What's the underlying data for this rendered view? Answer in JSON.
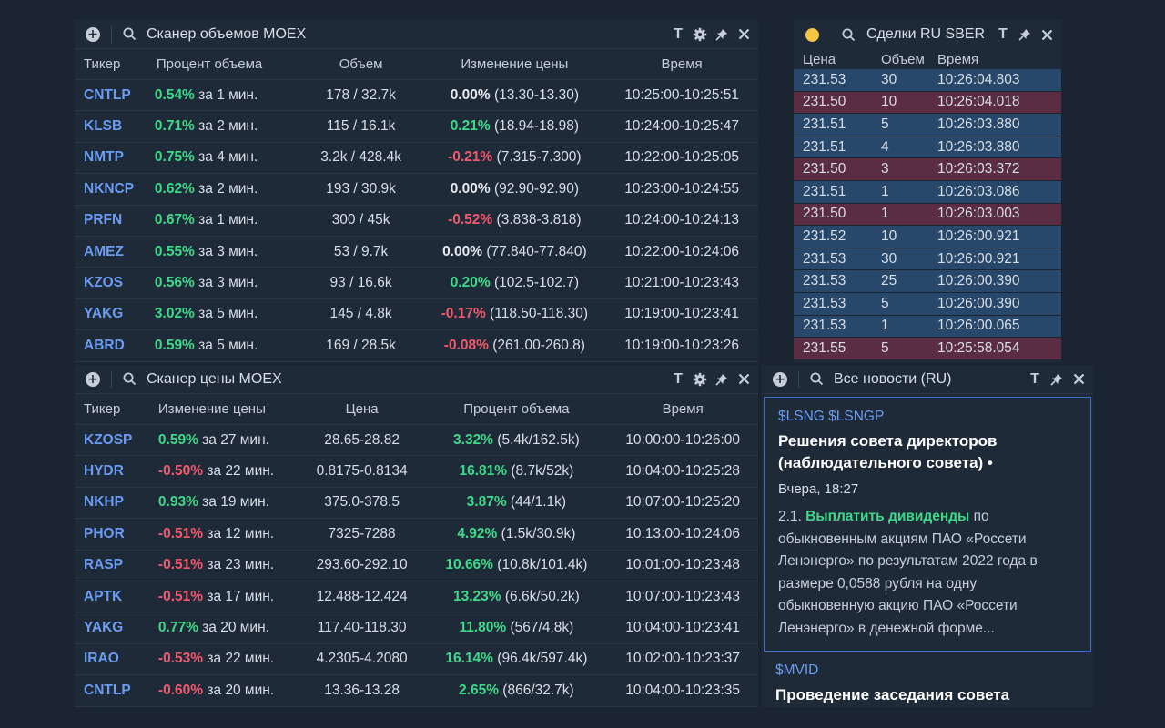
{
  "volume_scanner": {
    "title": "Сканер объемов MOEX",
    "columns": [
      "Тикер",
      "Процент объема",
      "Объем",
      "Изменение цены",
      "Время"
    ],
    "rows": [
      {
        "ticker": "CNTLP",
        "pct": "0.54%",
        "period": "за 1 мин.",
        "volume": "178 / 32.7k",
        "change": "0.00%",
        "range": "(13.30-13.30)",
        "dir": "neu",
        "time": "10:25:00-10:25:51"
      },
      {
        "ticker": "KLSB",
        "pct": "0.71%",
        "period": "за 2 мин.",
        "volume": "115 / 16.1k",
        "change": "0.21%",
        "range": "(18.94-18.98)",
        "dir": "pos",
        "time": "10:24:00-10:25:47"
      },
      {
        "ticker": "NMTP",
        "pct": "0.75%",
        "period": "за 4 мин.",
        "volume": "3.2k / 428.4k",
        "change": "-0.21%",
        "range": "(7.315-7.300)",
        "dir": "neg",
        "time": "10:22:00-10:25:05"
      },
      {
        "ticker": "NKNCP",
        "pct": "0.62%",
        "period": "за 2 мин.",
        "volume": "193 / 30.9k",
        "change": "0.00%",
        "range": "(92.90-92.90)",
        "dir": "neu",
        "time": "10:23:00-10:24:55"
      },
      {
        "ticker": "PRFN",
        "pct": "0.67%",
        "period": "за 1 мин.",
        "volume": "300 / 45k",
        "change": "-0.52%",
        "range": "(3.838-3.818)",
        "dir": "neg",
        "time": "10:24:00-10:24:13"
      },
      {
        "ticker": "AMEZ",
        "pct": "0.55%",
        "period": "за 3 мин.",
        "volume": "53 / 9.7k",
        "change": "0.00%",
        "range": "(77.840-77.840)",
        "dir": "neu",
        "time": "10:22:00-10:24:06"
      },
      {
        "ticker": "KZOS",
        "pct": "0.56%",
        "period": "за 3 мин.",
        "volume": "93 / 16.6k",
        "change": "0.20%",
        "range": "(102.5-102.7)",
        "dir": "pos",
        "time": "10:21:00-10:23:43"
      },
      {
        "ticker": "YAKG",
        "pct": "3.02%",
        "period": "за 5 мин.",
        "volume": "145 / 4.8k",
        "change": "-0.17%",
        "range": "(118.50-118.30)",
        "dir": "neg",
        "time": "10:19:00-10:23:41"
      },
      {
        "ticker": "ABRD",
        "pct": "0.59%",
        "period": "за 5 мин.",
        "volume": "169 / 28.5k",
        "change": "-0.08%",
        "range": "(261.00-260.8)",
        "dir": "neg",
        "time": "10:19:00-10:23:26"
      }
    ]
  },
  "price_scanner": {
    "title": "Сканер цены MOEX",
    "columns": [
      "Тикер",
      "Изменение цены",
      "Цена",
      "Процент объема",
      "Время"
    ],
    "rows": [
      {
        "ticker": "KZOSP",
        "change": "0.59%",
        "period": "за 27 мин.",
        "dir": "pos",
        "price": "28.65-28.82",
        "pct": "3.32%",
        "vol": "(5.4k/162.5k)",
        "time": "10:00:00-10:26:00"
      },
      {
        "ticker": "HYDR",
        "change": "-0.50%",
        "period": "за 22 мин.",
        "dir": "neg",
        "price": "0.8175-0.8134",
        "pct": "16.81%",
        "vol": "(8.7k/52k)",
        "time": "10:04:00-10:25:28"
      },
      {
        "ticker": "NKHP",
        "change": "0.93%",
        "period": "за 19 мин.",
        "dir": "pos",
        "price": "375.0-378.5",
        "pct": "3.87%",
        "vol": "(44/1.1k)",
        "time": "10:07:00-10:25:20"
      },
      {
        "ticker": "PHOR",
        "change": "-0.51%",
        "period": "за 12 мин.",
        "dir": "neg",
        "price": "7325-7288",
        "pct": "4.92%",
        "vol": "(1.5k/30.9k)",
        "time": "10:13:00-10:24:06"
      },
      {
        "ticker": "RASP",
        "change": "-0.51%",
        "period": "за 23 мин.",
        "dir": "neg",
        "price": "293.60-292.10",
        "pct": "10.66%",
        "vol": "(10.8k/101.4k)",
        "time": "10:01:00-10:23:48"
      },
      {
        "ticker": "APTK",
        "change": "-0.51%",
        "period": "за 17 мин.",
        "dir": "neg",
        "price": "12.488-12.424",
        "pct": "13.23%",
        "vol": "(6.6k/50.2k)",
        "time": "10:07:00-10:23:43"
      },
      {
        "ticker": "YAKG",
        "change": "0.77%",
        "period": "за 20 мин.",
        "dir": "pos",
        "price": "117.40-118.30",
        "pct": "11.80%",
        "vol": "(567/4.8k)",
        "time": "10:04:00-10:23:41"
      },
      {
        "ticker": "IRAO",
        "change": "-0.53%",
        "period": "за 22 мин.",
        "dir": "neg",
        "price": "4.2305-4.2080",
        "pct": "16.14%",
        "vol": "(96.4k/597.4k)",
        "time": "10:02:00-10:23:37"
      },
      {
        "ticker": "CNTLP",
        "change": "-0.60%",
        "period": "за 20 мин.",
        "dir": "neg",
        "price": "13.36-13.28",
        "pct": "2.65%",
        "vol": "(866/32.7k)",
        "time": "10:04:00-10:23:35"
      }
    ]
  },
  "trades": {
    "title": "Сделки RU SBER",
    "columns": [
      "Цена",
      "Объем",
      "Время"
    ],
    "rows": [
      {
        "price": "231.53",
        "volume": "30",
        "time": "10:26:04.803",
        "side": "buy"
      },
      {
        "price": "231.50",
        "volume": "10",
        "time": "10:26:04.018",
        "side": "sell"
      },
      {
        "price": "231.51",
        "volume": "5",
        "time": "10:26:03.880",
        "side": "buy"
      },
      {
        "price": "231.51",
        "volume": "4",
        "time": "10:26:03.880",
        "side": "buy"
      },
      {
        "price": "231.50",
        "volume": "3",
        "time": "10:26:03.372",
        "side": "sell"
      },
      {
        "price": "231.51",
        "volume": "1",
        "time": "10:26:03.086",
        "side": "buy"
      },
      {
        "price": "231.50",
        "volume": "1",
        "time": "10:26:03.003",
        "side": "sell"
      },
      {
        "price": "231.52",
        "volume": "10",
        "time": "10:26:00.921",
        "side": "buy"
      },
      {
        "price": "231.53",
        "volume": "30",
        "time": "10:26:00.921",
        "side": "buy"
      },
      {
        "price": "231.53",
        "volume": "25",
        "time": "10:26:00.390",
        "side": "buy"
      },
      {
        "price": "231.53",
        "volume": "5",
        "time": "10:26:00.390",
        "side": "buy"
      },
      {
        "price": "231.53",
        "volume": "1",
        "time": "10:26:00.065",
        "side": "buy"
      },
      {
        "price": "231.55",
        "volume": "5",
        "time": "10:25:58.054",
        "side": "sell"
      }
    ]
  },
  "news": {
    "title": "Все новости (RU)",
    "items": [
      {
        "tags": "$LSNG $LSNGP",
        "headline": "Решения совета директоров (наблюдательного совета) •",
        "time": "Вчера, 18:27",
        "body_prefix": "2.1. ",
        "body_highlight": "Выплатить дивиденды",
        "body_rest": " по обыкновенным акциям ПАО «Россети Ленэнерго» по результатам 2022 года в размере 0,0588 рубля на одну обыкновенную акцию ПАО «Россети Ленэнерго» в денежной форме..."
      },
      {
        "tags": "$MVID",
        "headline": "Проведение заседания совета"
      }
    ]
  },
  "colors": {
    "pos": "#3fd98a",
    "neg": "#f05a6e",
    "ticker": "#6b9cf0",
    "buy_row": "#27486b",
    "sell_row": "#5a2d42"
  }
}
